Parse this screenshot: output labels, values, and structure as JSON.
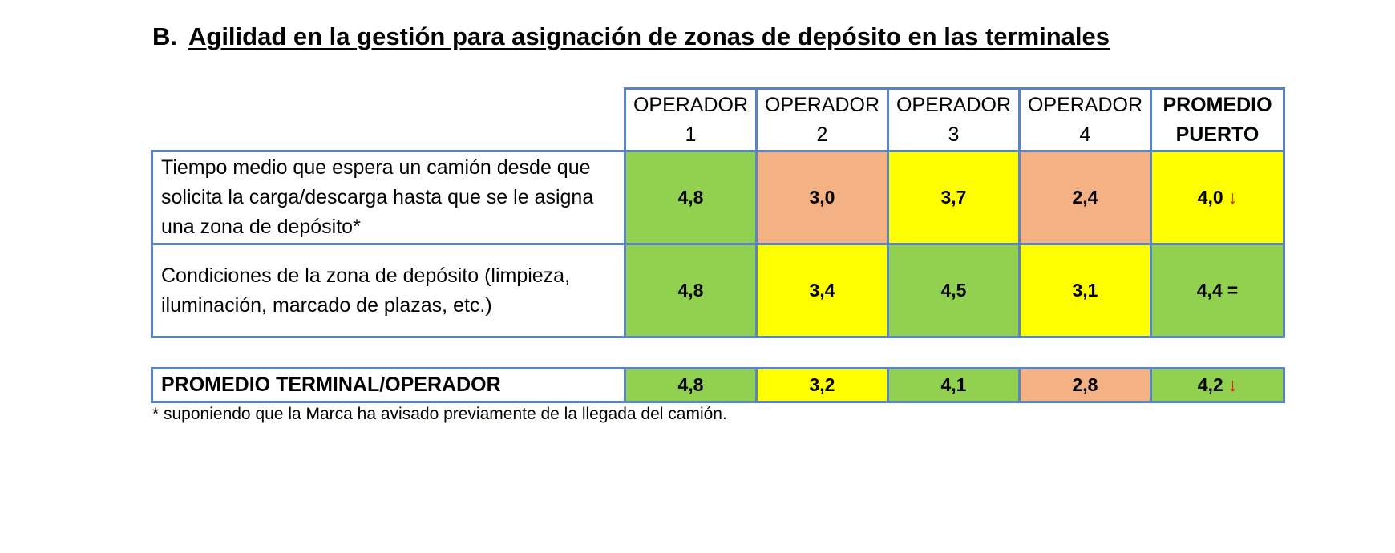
{
  "section": {
    "letter": "B.",
    "title": "Agilidad en la gestión para asignación de zonas de depósito en las terminales"
  },
  "colors": {
    "green": "#92d050",
    "yellow": "#ffff00",
    "salmon": "#f4b183",
    "border": "#5b84c4",
    "arrow": "#e8101a"
  },
  "table": {
    "headers": [
      {
        "line1": "OPERADOR",
        "line2": "1"
      },
      {
        "line1": "OPERADOR",
        "line2": "2"
      },
      {
        "line1": "OPERADOR",
        "line2": "3"
      },
      {
        "line1": "OPERADOR",
        "line2": "4"
      },
      {
        "line1": "PROMEDIO",
        "line2": "PUERTO"
      }
    ],
    "rows": [
      {
        "label": "Tiempo medio que espera un camión desde que solicita la carga/descarga hasta que se le asigna una zona de depósito*",
        "values": [
          "4,8",
          "3,0",
          "3,7",
          "2,4",
          "4,0"
        ],
        "colors": [
          "green",
          "salmon",
          "yellow",
          "salmon",
          "yellow"
        ],
        "trend": "↓"
      },
      {
        "label": "Condiciones de la zona de depósito (limpieza, iluminación, marcado de plazas, etc.)",
        "values": [
          "4,8",
          "3,4",
          "4,5",
          "3,1",
          "4,4"
        ],
        "colors": [
          "green",
          "yellow",
          "green",
          "yellow",
          "green"
        ],
        "trend": "="
      }
    ]
  },
  "summary": {
    "label": "PROMEDIO TERMINAL/OPERADOR",
    "values": [
      "4,8",
      "3,2",
      "4,1",
      "2,8",
      "4,2"
    ],
    "colors": [
      "green",
      "yellow",
      "green",
      "salmon",
      "green"
    ],
    "trend": "↓"
  },
  "footnote": "* suponiendo que la Marca ha avisado previamente de la llegada del camión."
}
